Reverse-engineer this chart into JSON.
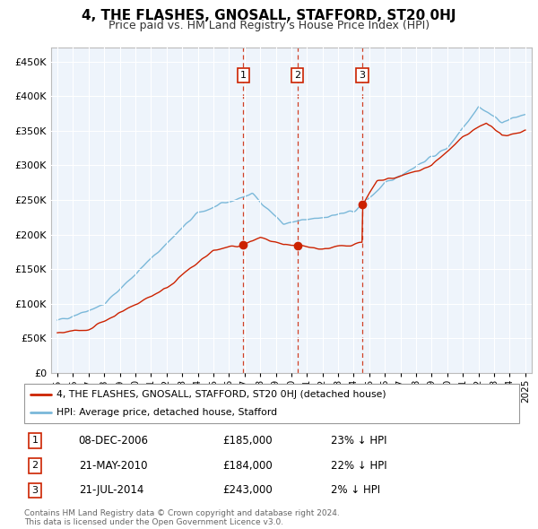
{
  "title": "4, THE FLASHES, GNOSALL, STAFFORD, ST20 0HJ",
  "subtitle": "Price paid vs. HM Land Registry's House Price Index (HPI)",
  "legend_line1": "4, THE FLASHES, GNOSALL, STAFFORD, ST20 0HJ (detached house)",
  "legend_line2": "HPI: Average price, detached house, Stafford",
  "footer": "Contains HM Land Registry data © Crown copyright and database right 2024.\nThis data is licensed under the Open Government Licence v3.0.",
  "transactions": [
    {
      "num": 1,
      "date": "08-DEC-2006",
      "price": "£185,000",
      "pct": "23% ↓ HPI",
      "x_year": 2006.93
    },
    {
      "num": 2,
      "date": "21-MAY-2010",
      "price": "£184,000",
      "pct": "22% ↓ HPI",
      "x_year": 2010.38
    },
    {
      "num": 3,
      "date": "21-JUL-2014",
      "price": "£243,000",
      "pct": "2% ↓ HPI",
      "x_year": 2014.55
    }
  ],
  "sale_prices": [
    185000,
    184000,
    243000
  ],
  "sale_years": [
    2006.93,
    2010.38,
    2014.55
  ],
  "hpi_color": "#7ab8d9",
  "price_color": "#cc2200",
  "vline_color": "#cc2200",
  "background_color": "#ffffff",
  "plot_bg": "#eef4fb",
  "ylim": [
    0,
    470000
  ],
  "yticks": [
    0,
    50000,
    100000,
    150000,
    200000,
    250000,
    300000,
    350000,
    400000,
    450000
  ],
  "xlim_start": 1994.6,
  "xlim_end": 2025.4,
  "xticks": [
    1995,
    1996,
    1997,
    1998,
    1999,
    2000,
    2001,
    2002,
    2003,
    2004,
    2005,
    2006,
    2007,
    2008,
    2009,
    2010,
    2011,
    2012,
    2013,
    2014,
    2015,
    2016,
    2017,
    2018,
    2019,
    2020,
    2021,
    2022,
    2023,
    2024,
    2025
  ]
}
